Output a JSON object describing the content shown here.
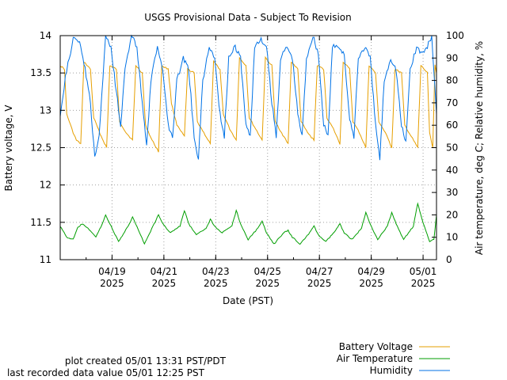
{
  "chart_data": {
    "type": "line",
    "title": "USGS Provisional Data - Subject To Revision",
    "xlabel": "Date (PST)",
    "ylabel_left": "Battery voltage, V",
    "ylabel_right": "Air temperature, deg C; Relative humidity, %",
    "x_range": [
      "2025-04-17",
      "2025-05-01T12:25"
    ],
    "y_left_range": [
      11,
      14
    ],
    "y_right_range": [
      0,
      100
    ],
    "y_left_ticks": [
      "11",
      "11.5",
      "12",
      "12.5",
      "13",
      "13.5",
      "14"
    ],
    "y_right_ticks": [
      "0",
      "10",
      "20",
      "30",
      "40",
      "50",
      "60",
      "70",
      "80",
      "90",
      "100"
    ],
    "x_ticks": [
      {
        "date": "2025-04-19",
        "label": "04/19",
        "year": "2025"
      },
      {
        "date": "2025-04-21",
        "label": "04/21",
        "year": "2025"
      },
      {
        "date": "2025-04-23",
        "label": "04/23",
        "year": "2025"
      },
      {
        "date": "2025-04-25",
        "label": "04/25",
        "year": "2025"
      },
      {
        "date": "2025-04-27",
        "label": "04/27",
        "year": "2025"
      },
      {
        "date": "2025-04-29",
        "label": "04/29",
        "year": "2025"
      },
      {
        "date": "2025-05-01",
        "label": "05/01",
        "year": "2025"
      }
    ],
    "grid": true,
    "series": [
      {
        "name": "Battery Voltage",
        "axis": "left",
        "color": "#e69f00",
        "points": [
          [
            "2025-04-17T00:00",
            13.6
          ],
          [
            "2025-04-17T04:00",
            13.55
          ],
          [
            "2025-04-17T06:00",
            12.95
          ],
          [
            "2025-04-17T12:00",
            12.7
          ],
          [
            "2025-04-17T15:00",
            12.6
          ],
          [
            "2025-04-17T19:00",
            12.55
          ],
          [
            "2025-04-17T22:00",
            13.65
          ],
          [
            "2025-04-18T04:00",
            13.55
          ],
          [
            "2025-04-18T07:00",
            12.9
          ],
          [
            "2025-04-18T14:00",
            12.65
          ],
          [
            "2025-04-18T19:00",
            12.5
          ],
          [
            "2025-04-18T22:00",
            13.6
          ],
          [
            "2025-04-19T04:00",
            13.55
          ],
          [
            "2025-04-19T07:00",
            12.85
          ],
          [
            "2025-04-19T13:00",
            12.7
          ],
          [
            "2025-04-19T19:00",
            12.6
          ],
          [
            "2025-04-19T22:00",
            13.6
          ],
          [
            "2025-04-20T04:00",
            13.5
          ],
          [
            "2025-04-20T07:00",
            12.8
          ],
          [
            "2025-04-20T13:00",
            12.6
          ],
          [
            "2025-04-20T19:00",
            12.45
          ],
          [
            "2025-04-20T22:00",
            13.6
          ],
          [
            "2025-04-21T04:00",
            13.55
          ],
          [
            "2025-04-21T07:00",
            13.1
          ],
          [
            "2025-04-21T12:00",
            12.8
          ],
          [
            "2025-04-21T19:00",
            12.65
          ],
          [
            "2025-04-21T22:00",
            13.55
          ],
          [
            "2025-04-22T04:00",
            13.5
          ],
          [
            "2025-04-22T07:00",
            12.85
          ],
          [
            "2025-04-22T13:00",
            12.7
          ],
          [
            "2025-04-22T19:00",
            12.55
          ],
          [
            "2025-04-22T22:00",
            13.65
          ],
          [
            "2025-04-23T04:00",
            13.55
          ],
          [
            "2025-04-23T07:00",
            12.95
          ],
          [
            "2025-04-23T13:00",
            12.75
          ],
          [
            "2025-04-23T19:00",
            12.6
          ],
          [
            "2025-04-23T22:00",
            13.7
          ],
          [
            "2025-04-24T04:00",
            13.6
          ],
          [
            "2025-04-24T07:00",
            12.9
          ],
          [
            "2025-04-24T13:00",
            12.75
          ],
          [
            "2025-04-24T19:00",
            12.6
          ],
          [
            "2025-04-24T22:00",
            13.7
          ],
          [
            "2025-04-25T04:00",
            13.6
          ],
          [
            "2025-04-25T07:00",
            12.85
          ],
          [
            "2025-04-25T13:00",
            12.7
          ],
          [
            "2025-04-25T19:00",
            12.55
          ],
          [
            "2025-04-25T22:00",
            13.65
          ],
          [
            "2025-04-26T04:00",
            13.55
          ],
          [
            "2025-04-26T07:00",
            12.85
          ],
          [
            "2025-04-26T13:00",
            12.7
          ],
          [
            "2025-04-26T19:00",
            12.6
          ],
          [
            "2025-04-26T22:00",
            13.6
          ],
          [
            "2025-04-27T04:00",
            13.55
          ],
          [
            "2025-04-27T07:00",
            12.9
          ],
          [
            "2025-04-27T13:00",
            12.75
          ],
          [
            "2025-04-27T19:00",
            12.55
          ],
          [
            "2025-04-27T22:00",
            13.65
          ],
          [
            "2025-04-28T04:00",
            13.55
          ],
          [
            "2025-04-28T07:00",
            12.85
          ],
          [
            "2025-04-28T13:00",
            12.7
          ],
          [
            "2025-04-28T19:00",
            12.5
          ],
          [
            "2025-04-28T22:00",
            13.6
          ],
          [
            "2025-04-29T04:00",
            13.5
          ],
          [
            "2025-04-29T07:00",
            12.85
          ],
          [
            "2025-04-29T13:00",
            12.7
          ],
          [
            "2025-04-29T19:00",
            12.5
          ],
          [
            "2025-04-29T22:00",
            13.55
          ],
          [
            "2025-04-30T04:00",
            13.5
          ],
          [
            "2025-04-30T07:00",
            12.8
          ],
          [
            "2025-04-30T13:00",
            12.65
          ],
          [
            "2025-04-30T19:00",
            12.5
          ],
          [
            "2025-04-30T22:00",
            13.6
          ],
          [
            "2025-05-01T04:00",
            13.5
          ],
          [
            "2025-05-01T06:00",
            12.7
          ],
          [
            "2025-05-01T09:00",
            12.5
          ],
          [
            "2025-05-01T11:00",
            13.6
          ],
          [
            "2025-05-01T12:25",
            13.5
          ]
        ]
      },
      {
        "name": "Air Temperature",
        "axis": "right",
        "color": "#009e00",
        "points": [
          [
            "2025-04-17T00:00",
            15
          ],
          [
            "2025-04-17T06:00",
            10
          ],
          [
            "2025-04-17T12:00",
            9
          ],
          [
            "2025-04-17T16:00",
            14
          ],
          [
            "2025-04-17T20:00",
            16
          ],
          [
            "2025-04-18T04:00",
            13
          ],
          [
            "2025-04-18T09:00",
            10
          ],
          [
            "2025-04-18T15:00",
            16
          ],
          [
            "2025-04-18T18:00",
            20
          ],
          [
            "2025-04-18T22:00",
            16
          ],
          [
            "2025-04-19T06:00",
            8
          ],
          [
            "2025-04-19T15:00",
            15
          ],
          [
            "2025-04-19T19:00",
            19
          ],
          [
            "2025-04-19T23:00",
            15
          ],
          [
            "2025-04-20T06:00",
            7
          ],
          [
            "2025-04-20T15:00",
            16
          ],
          [
            "2025-04-20T19:00",
            20
          ],
          [
            "2025-04-20T23:00",
            16
          ],
          [
            "2025-04-21T06:00",
            12
          ],
          [
            "2025-04-21T15:00",
            15
          ],
          [
            "2025-04-21T19:00",
            22
          ],
          [
            "2025-04-21T23:00",
            16
          ],
          [
            "2025-04-22T06:00",
            11
          ],
          [
            "2025-04-22T15:00",
            14
          ],
          [
            "2025-04-22T19:00",
            18
          ],
          [
            "2025-04-22T23:00",
            15
          ],
          [
            "2025-04-23T06:00",
            12
          ],
          [
            "2025-04-23T15:00",
            15
          ],
          [
            "2025-04-23T19:00",
            22
          ],
          [
            "2025-04-23T23:00",
            16
          ],
          [
            "2025-04-24T06:00",
            9
          ],
          [
            "2025-04-24T15:00",
            14
          ],
          [
            "2025-04-24T19:00",
            17
          ],
          [
            "2025-04-24T23:00",
            12
          ],
          [
            "2025-04-25T06:00",
            7
          ],
          [
            "2025-04-25T15:00",
            12
          ],
          [
            "2025-04-25T19:00",
            13
          ],
          [
            "2025-04-25T23:00",
            10
          ],
          [
            "2025-04-26T06:00",
            7
          ],
          [
            "2025-04-26T15:00",
            12
          ],
          [
            "2025-04-26T19:00",
            15
          ],
          [
            "2025-04-26T23:00",
            11
          ],
          [
            "2025-04-27T06:00",
            8
          ],
          [
            "2025-04-27T15:00",
            13
          ],
          [
            "2025-04-27T19:00",
            16
          ],
          [
            "2025-04-27T23:00",
            12
          ],
          [
            "2025-04-28T06:00",
            9
          ],
          [
            "2025-04-28T15:00",
            14
          ],
          [
            "2025-04-28T19:00",
            21
          ],
          [
            "2025-04-28T23:00",
            16
          ],
          [
            "2025-04-29T06:00",
            9
          ],
          [
            "2025-04-29T15:00",
            15
          ],
          [
            "2025-04-29T19:00",
            21
          ],
          [
            "2025-04-29T23:00",
            16
          ],
          [
            "2025-04-30T06:00",
            9
          ],
          [
            "2025-04-30T15:00",
            15
          ],
          [
            "2025-04-30T19:00",
            25
          ],
          [
            "2025-04-30T23:00",
            18
          ],
          [
            "2025-05-01T06:00",
            8
          ],
          [
            "2025-05-01T10:00",
            9
          ],
          [
            "2025-05-01T12:25",
            20
          ]
        ]
      },
      {
        "name": "Humidity",
        "axis": "right",
        "color": "#0072e6",
        "points": [
          [
            "2025-04-17T00:00",
            65
          ],
          [
            "2025-04-17T06:00",
            85
          ],
          [
            "2025-04-17T12:00",
            98
          ],
          [
            "2025-04-17T18:00",
            98
          ],
          [
            "2025-04-17T23:00",
            85
          ],
          [
            "2025-04-18T04:00",
            70
          ],
          [
            "2025-04-18T08:00",
            45
          ],
          [
            "2025-04-18T12:00",
            55
          ],
          [
            "2025-04-18T18:00",
            100
          ],
          [
            "2025-04-18T23:00",
            95
          ],
          [
            "2025-04-19T04:00",
            75
          ],
          [
            "2025-04-19T08:00",
            60
          ],
          [
            "2025-04-19T12:00",
            85
          ],
          [
            "2025-04-19T18:00",
            100
          ],
          [
            "2025-04-19T23:00",
            95
          ],
          [
            "2025-04-20T04:00",
            70
          ],
          [
            "2025-04-20T08:00",
            50
          ],
          [
            "2025-04-20T12:00",
            80
          ],
          [
            "2025-04-20T18:00",
            95
          ],
          [
            "2025-04-20T23:00",
            85
          ],
          [
            "2025-04-21T04:00",
            60
          ],
          [
            "2025-04-21T08:00",
            55
          ],
          [
            "2025-04-21T12:00",
            80
          ],
          [
            "2025-04-21T18:00",
            90
          ],
          [
            "2025-04-21T23:00",
            85
          ],
          [
            "2025-04-22T04:00",
            55
          ],
          [
            "2025-04-22T08:00",
            45
          ],
          [
            "2025-04-22T12:00",
            80
          ],
          [
            "2025-04-22T18:00",
            95
          ],
          [
            "2025-04-22T23:00",
            90
          ],
          [
            "2025-04-23T04:00",
            65
          ],
          [
            "2025-04-23T08:00",
            55
          ],
          [
            "2025-04-23T12:00",
            90
          ],
          [
            "2025-04-23T18:00",
            95
          ],
          [
            "2025-04-23T23:00",
            90
          ],
          [
            "2025-04-24T04:00",
            60
          ],
          [
            "2025-04-24T08:00",
            55
          ],
          [
            "2025-04-24T12:00",
            95
          ],
          [
            "2025-04-24T18:00",
            98
          ],
          [
            "2025-04-24T23:00",
            95
          ],
          [
            "2025-04-25T04:00",
            70
          ],
          [
            "2025-04-25T08:00",
            55
          ],
          [
            "2025-04-25T12:00",
            90
          ],
          [
            "2025-04-25T18:00",
            95
          ],
          [
            "2025-04-25T23:00",
            90
          ],
          [
            "2025-04-26T04:00",
            65
          ],
          [
            "2025-04-26T08:00",
            55
          ],
          [
            "2025-04-26T12:00",
            90
          ],
          [
            "2025-04-26T18:00",
            100
          ],
          [
            "2025-04-26T23:00",
            92
          ],
          [
            "2025-04-27T04:00",
            60
          ],
          [
            "2025-04-27T08:00",
            55
          ],
          [
            "2025-04-27T12:00",
            95
          ],
          [
            "2025-04-27T18:00",
            95
          ],
          [
            "2025-04-27T23:00",
            92
          ],
          [
            "2025-04-28T04:00",
            62
          ],
          [
            "2025-04-28T08:00",
            55
          ],
          [
            "2025-04-28T12:00",
            90
          ],
          [
            "2025-04-28T18:00",
            95
          ],
          [
            "2025-04-28T23:00",
            90
          ],
          [
            "2025-04-29T04:00",
            60
          ],
          [
            "2025-04-29T08:00",
            45
          ],
          [
            "2025-04-29T12:00",
            80
          ],
          [
            "2025-04-29T18:00",
            90
          ],
          [
            "2025-04-29T23:00",
            85
          ],
          [
            "2025-04-30T04:00",
            60
          ],
          [
            "2025-04-30T08:00",
            52
          ],
          [
            "2025-04-30T12:00",
            85
          ],
          [
            "2025-04-30T18:00",
            95
          ],
          [
            "2025-04-30T23:00",
            92
          ],
          [
            "2025-05-01T04:00",
            95
          ],
          [
            "2025-05-01T08:00",
            100
          ],
          [
            "2025-05-01T12:25",
            65
          ]
        ]
      }
    ],
    "legend_position": "bottom-right"
  },
  "footer": {
    "created": "plot created 05/01 13:31 PST/PDT",
    "last_value": "last recorded data value 05/01 12:25 PST"
  }
}
